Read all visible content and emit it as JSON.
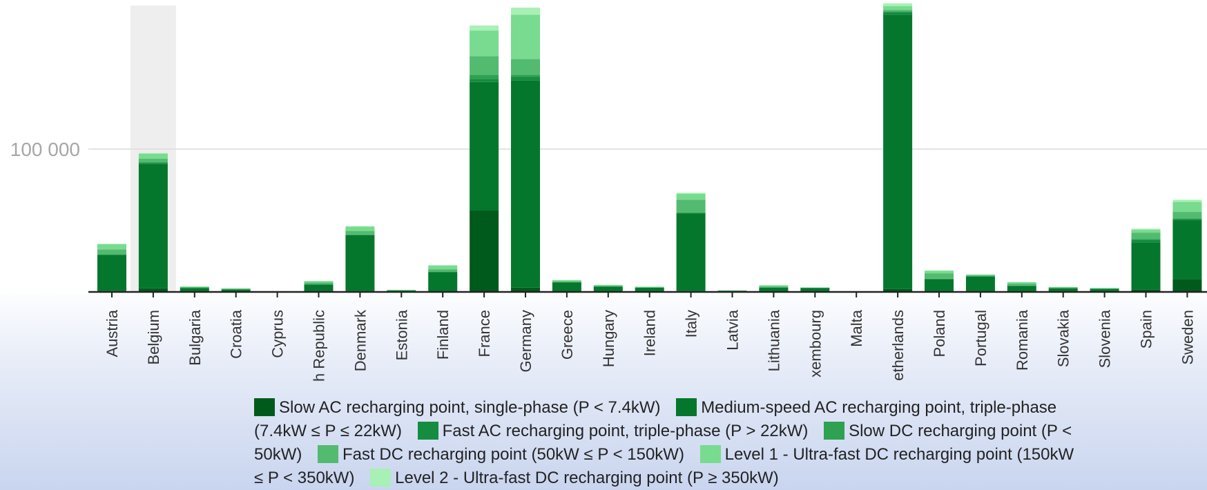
{
  "chart_data": {
    "type": "bar",
    "stacked": true,
    "title": "",
    "xlabel": "",
    "ylabel": "",
    "ylim": [
      0,
      200000
    ],
    "yticks": [
      100000
    ],
    "ytick_labels": [
      "100 000"
    ],
    "grid": true,
    "legend_position": "bottom",
    "highlighted_category": "Belgium",
    "categories": [
      "Austria",
      "Belgium",
      "Bulgaria",
      "Croatia",
      "Cyprus",
      "h Republic",
      "Denmark",
      "Estonia",
      "Finland",
      "France",
      "Germany",
      "Greece",
      "Hungary",
      "Ireland",
      "Italy",
      "Latvia",
      "Lithuania",
      "xembourg",
      "Malta",
      "etherlands",
      "Poland",
      "Portugal",
      "Romania",
      "Slovakia",
      "Slovenia",
      "Spain",
      "Sweden"
    ],
    "series": [
      {
        "name": "Slow AC recharging point, single-phase (P < 7.4kW)",
        "color": "#005a1c",
        "values": [
          800,
          2500,
          200,
          200,
          50,
          200,
          600,
          100,
          400,
          57000,
          3000,
          200,
          200,
          100,
          800,
          50,
          200,
          100,
          20,
          2000,
          300,
          300,
          200,
          100,
          100,
          1500,
          9000
        ]
      },
      {
        "name": "Medium-speed AC recharging point, triple-phase (7.4kW ≤ P ≤ 22kW)",
        "color": "#04772c",
        "values": [
          25000,
          87000,
          2500,
          1500,
          150,
          5000,
          39000,
          800,
          13500,
          90000,
          145000,
          6500,
          3500,
          2800,
          54000,
          700,
          2800,
          2700,
          120,
          192000,
          8500,
          10500,
          4000,
          2500,
          2000,
          33000,
          41000
        ]
      },
      {
        "name": "Fast AC recharging point, triple-phase (P > 22kW)",
        "color": "#158c40",
        "values": [
          300,
          1000,
          100,
          100,
          20,
          300,
          300,
          50,
          300,
          2000,
          2500,
          100,
          100,
          100,
          500,
          20,
          100,
          50,
          10,
          2000,
          500,
          200,
          300,
          100,
          50,
          2000,
          1000
        ]
      },
      {
        "name": "Slow DC recharging point (P < 50kW)",
        "color": "#2ea153",
        "values": [
          200,
          300,
          100,
          50,
          10,
          200,
          300,
          20,
          200,
          3000,
          1500,
          100,
          100,
          50,
          300,
          10,
          50,
          20,
          5,
          500,
          200,
          100,
          200,
          50,
          50,
          500,
          500
        ]
      },
      {
        "name": "Fast DC recharging point (50kW ≤ P < 150kW)",
        "color": "#52bb6f",
        "values": [
          3500,
          2500,
          500,
          400,
          80,
          1000,
          2500,
          250,
          1500,
          13000,
          11000,
          600,
          500,
          300,
          9000,
          200,
          800,
          150,
          15,
          1000,
          3500,
          600,
          1200,
          400,
          350,
          4500,
          4500
        ]
      },
      {
        "name": "Level 1 - Ultra-fast DC recharging point (150kW ≤ P < 350kW)",
        "color": "#78db8f",
        "values": [
          3500,
          3500,
          400,
          300,
          50,
          800,
          3000,
          250,
          2500,
          18000,
          31000,
          700,
          500,
          300,
          4000,
          150,
          700,
          150,
          5,
          2500,
          1800,
          500,
          900,
          300,
          300,
          2000,
          7000
        ]
      },
      {
        "name": "Level 2 - Ultra-fast DC recharging point (P ≥ 350kW)",
        "color": "#a8f0b5",
        "values": [
          500,
          400,
          50,
          50,
          5,
          200,
          400,
          50,
          400,
          3500,
          5000,
          100,
          100,
          50,
          800,
          20,
          100,
          30,
          2,
          2000,
          300,
          100,
          150,
          50,
          50,
          800,
          1500
        ]
      }
    ]
  }
}
